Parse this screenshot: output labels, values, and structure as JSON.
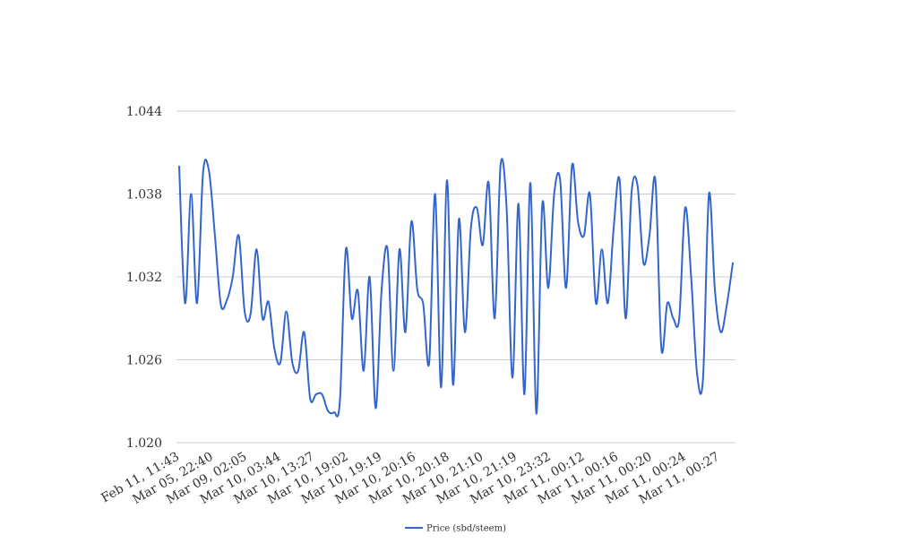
{
  "colors": {
    "series": "#3366cc",
    "grid": "#cccccc",
    "text": "#333333",
    "background": "#ffffff"
  },
  "chart_data": {
    "type": "line",
    "title": "",
    "xlabel": "",
    "ylabel": "",
    "ylim": [
      1.02,
      1.044
    ],
    "y_ticks": [
      "1.020",
      "1.026",
      "1.032",
      "1.038",
      "1.044"
    ],
    "x_tick_labels": [
      "Feb 11, 11:43",
      "Mar 05, 22:40",
      "Mar 09, 02:05",
      "Mar 10, 03:44",
      "Mar 10, 13:27",
      "Mar 10, 19:02",
      "Mar 10, 19:19",
      "Mar 10, 20:16",
      "Mar 10, 20:18",
      "Mar 10, 21:10",
      "Mar 10, 21:19",
      "Mar 10, 23:32",
      "Mar 11, 00:12",
      "Mar 11, 00:16",
      "Mar 11, 00:20",
      "Mar 11, 00:24",
      "Mar 11, 00:27"
    ],
    "grid": true,
    "legend_position": "bottom",
    "series": [
      {
        "name": "Price (sbd/steem)",
        "values": [
          1.04,
          1.0301,
          1.038,
          1.0301,
          1.0395,
          1.0397,
          1.035,
          1.03,
          1.0303,
          1.032,
          1.035,
          1.0295,
          1.0293,
          1.034,
          1.029,
          1.0302,
          1.0268,
          1.0258,
          1.0295,
          1.0258,
          1.0252,
          1.028,
          1.0232,
          1.0235,
          1.0235,
          1.0223,
          1.0222,
          1.023,
          1.034,
          1.029,
          1.031,
          1.0252,
          1.032,
          1.0225,
          1.031,
          1.034,
          1.0252,
          1.034,
          1.028,
          1.036,
          1.0311,
          1.03,
          1.0258,
          1.038,
          1.024,
          1.039,
          1.0242,
          1.0362,
          1.028,
          1.0355,
          1.037,
          1.0343,
          1.0388,
          1.029,
          1.0401,
          1.037,
          1.0247,
          1.0373,
          1.0235,
          1.0388,
          1.0221,
          1.0373,
          1.0312,
          1.038,
          1.039,
          1.0312,
          1.0401,
          1.036,
          1.035,
          1.038,
          1.0301,
          1.034,
          1.0301,
          1.0356,
          1.039,
          1.029,
          1.0381,
          1.0386,
          1.033,
          1.035,
          1.039,
          1.0268,
          1.0301,
          1.029,
          1.029,
          1.037,
          1.032,
          1.025,
          1.0247,
          1.038,
          1.031,
          1.028,
          1.03,
          1.033
        ]
      }
    ]
  }
}
